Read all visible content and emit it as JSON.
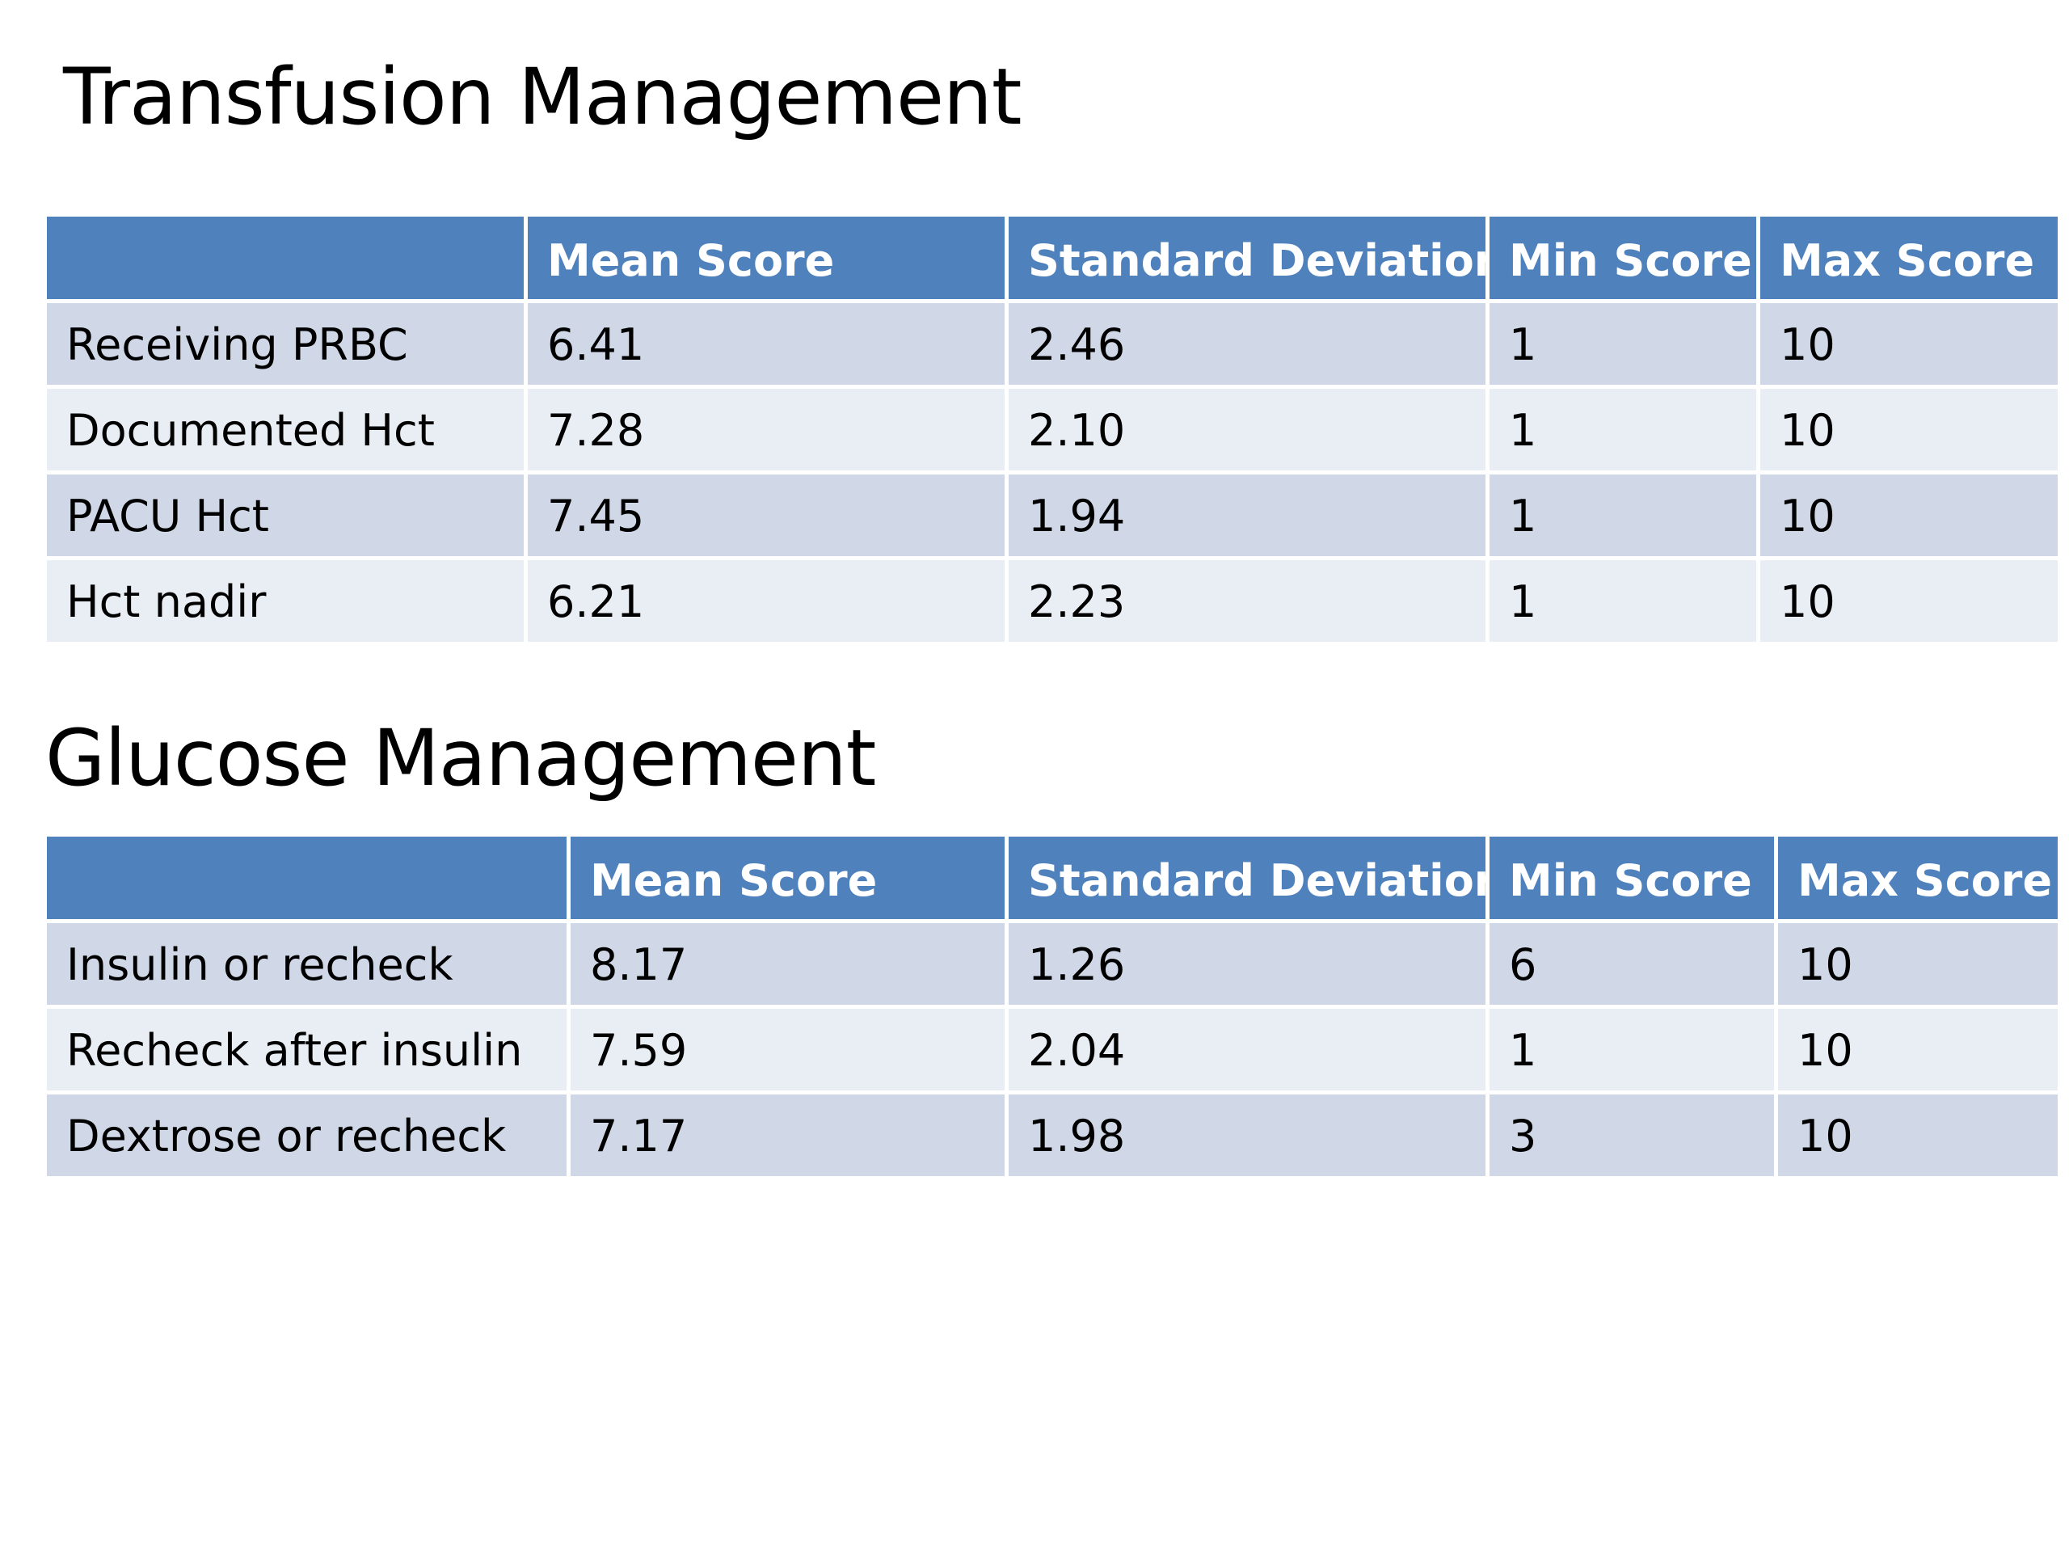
{
  "slide": {
    "sections": [
      {
        "title": "Transfusion Management",
        "table": {
          "headers": [
            "",
            "Mean Score",
            "Standard Deviation",
            "Min Score",
            "Max Score"
          ],
          "rows": [
            [
              "Receiving PRBC",
              "6.41",
              "2.46",
              "1",
              "10"
            ],
            [
              "Documented Hct",
              "7.28",
              "2.10",
              "1",
              "10"
            ],
            [
              "PACU Hct",
              "7.45",
              "1.94",
              "1",
              "10"
            ],
            [
              "Hct nadir",
              "6.21",
              "2.23",
              "1",
              "10"
            ]
          ]
        }
      },
      {
        "title": "Glucose Management",
        "table": {
          "headers": [
            "",
            "Mean Score",
            "Standard Deviation",
            "Min Score",
            "Max Score"
          ],
          "rows": [
            [
              "Insulin or recheck",
              "8.17",
              "1.26",
              "6",
              "10"
            ],
            [
              "Recheck after insulin",
              "7.59",
              "2.04",
              "1",
              "10"
            ],
            [
              "Dextrose or recheck",
              "7.17",
              "1.98",
              "3",
              "10"
            ]
          ]
        }
      }
    ]
  },
  "colors": {
    "header_fill": "#4f81bd",
    "row_fill_dark": "#d0d8e8",
    "row_fill_light": "#e9edf4",
    "header_text": "#ffffff",
    "body_text": "#000000"
  }
}
